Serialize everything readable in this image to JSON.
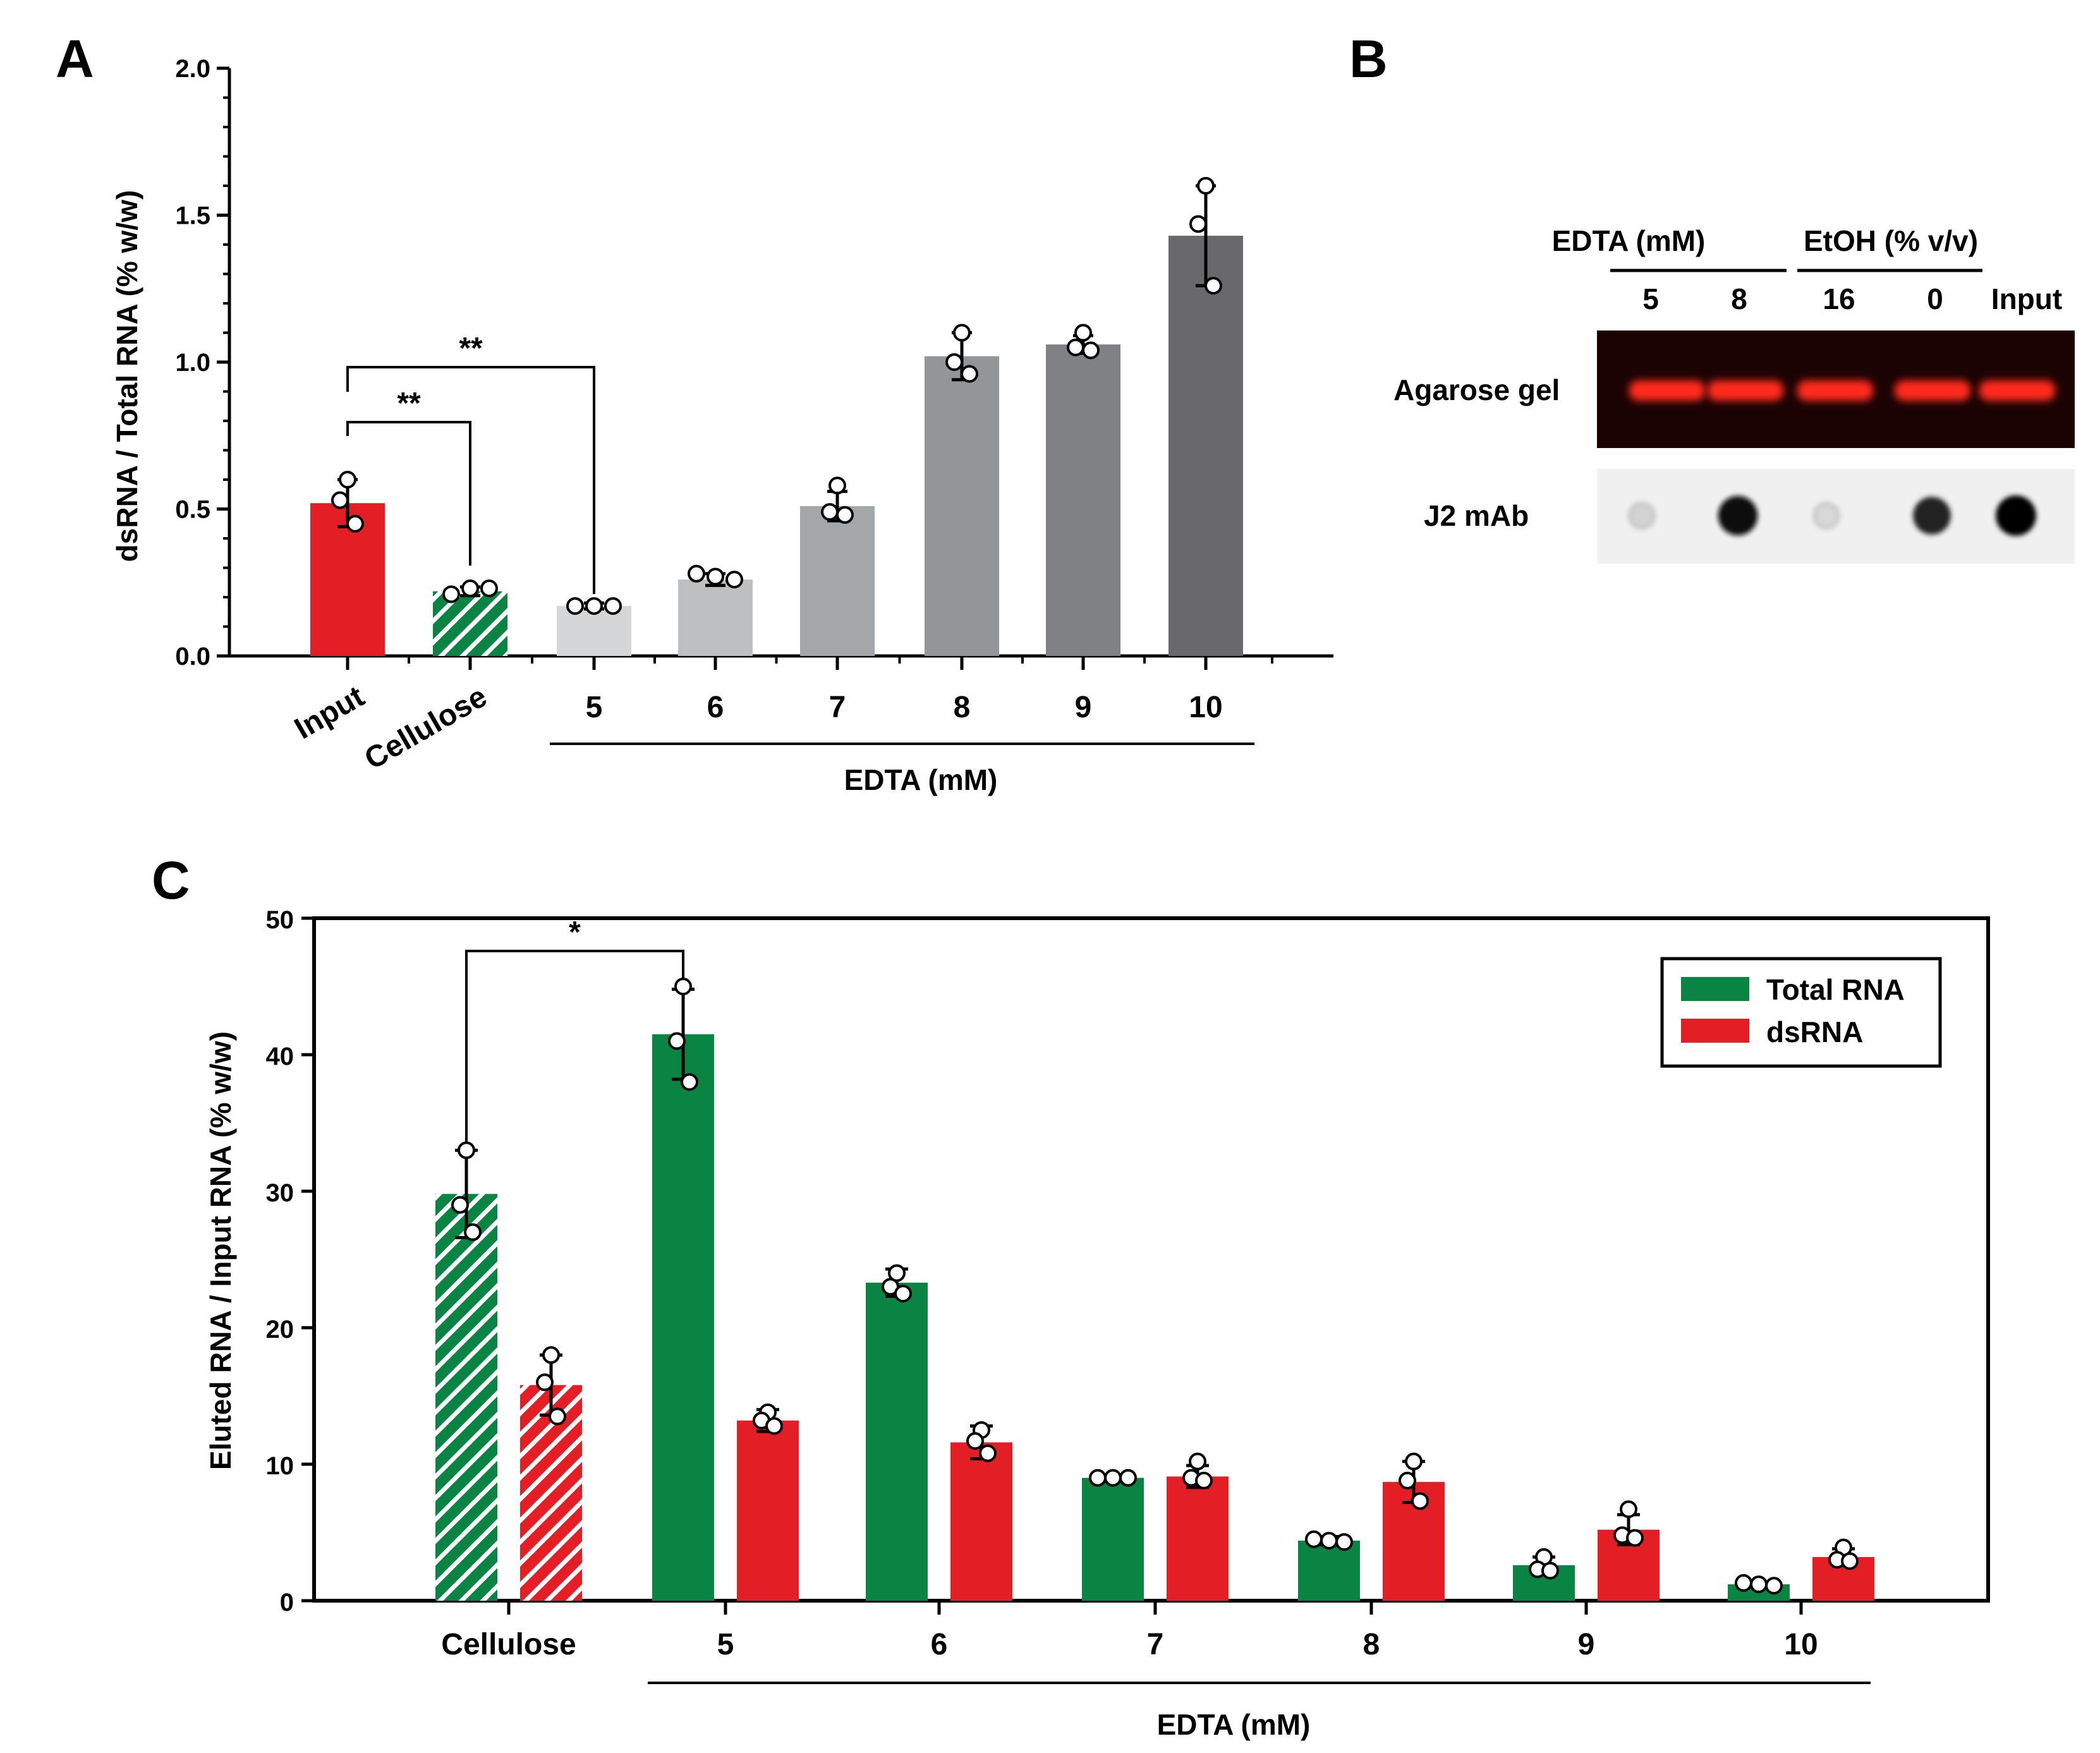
{
  "panels": {
    "a": {
      "label": "A"
    },
    "b": {
      "label": "B",
      "group1": "EDTA (mM)",
      "group2": "EtOH (% v/v)",
      "lanes": [
        "5",
        "8",
        "16",
        "0",
        "Input"
      ],
      "row1": "Agarose gel",
      "row2": "J2 mAb",
      "dot_intensity": [
        0.12,
        0.95,
        0.1,
        0.85,
        1.0
      ]
    },
    "c": {
      "label": "C"
    }
  },
  "colors": {
    "red": "#e31e24",
    "green": "#0a8442",
    "gel_bg": "#1c0303",
    "gel_band": "#ff2a1a"
  },
  "chart_data": [
    {
      "type": "bar",
      "ylabel": "dsRNA / Total RNA (% w/w)",
      "xlabel": "EDTA (mM)",
      "ylim": [
        0,
        2.0
      ],
      "yticks": [
        "0.0",
        "0.5",
        "1.0",
        "1.5",
        "2.0"
      ],
      "categories": [
        "Input",
        "Cellulose",
        "5",
        "6",
        "7",
        "8",
        "9",
        "10"
      ],
      "values": [
        0.52,
        0.22,
        0.17,
        0.26,
        0.51,
        1.02,
        1.06,
        1.43
      ],
      "errors": [
        0.08,
        0.015,
        0.01,
        0.02,
        0.05,
        0.08,
        0.03,
        0.17
      ],
      "points": [
        [
          0.6,
          0.53,
          0.45
        ],
        [
          0.21,
          0.23,
          0.23
        ],
        [
          0.17,
          0.17,
          0.17
        ],
        [
          0.28,
          0.27,
          0.26
        ],
        [
          0.58,
          0.49,
          0.48
        ],
        [
          1.1,
          1.0,
          0.96
        ],
        [
          1.1,
          1.05,
          1.04
        ],
        [
          1.6,
          1.47,
          1.26
        ]
      ],
      "bar_colors": [
        "#e31e24",
        "#0a8442",
        "#d5d6d7",
        "#bdbfc1",
        "#a4a7aa",
        "#939598",
        "#7f8184",
        "#69696c"
      ],
      "bar_hatch": [
        false,
        true,
        false,
        false,
        false,
        false,
        false,
        false
      ],
      "significance": [
        {
          "from": 0,
          "to": 1,
          "level": 1.0,
          "text": "**"
        },
        {
          "from": 0,
          "to": 2,
          "level": 0.98,
          "text": "**"
        }
      ]
    },
    {
      "type": "bar",
      "ylabel": "Eluted RNA / Input RNA (% w/w)",
      "xlabel": "EDTA (mM)",
      "ylim": [
        0,
        50
      ],
      "yticks": [
        "0",
        "10",
        "20",
        "30",
        "40",
        "50"
      ],
      "categories": [
        "Cellulose",
        "5",
        "6",
        "7",
        "8",
        "9",
        "10"
      ],
      "legend_position": "top-right",
      "series": [
        {
          "name": "Total RNA",
          "color": "#0a8442",
          "values": [
            29.8,
            41.5,
            23.3,
            9.0,
            4.4,
            2.6,
            1.2
          ],
          "errors": [
            3.2,
            3.3,
            1.0,
            0.2,
            0.3,
            0.6,
            0.1
          ],
          "points": [
            [
              33,
              29,
              27
            ],
            [
              45,
              41,
              38
            ],
            [
              24,
              23,
              22.5
            ],
            [
              9,
              9,
              9
            ],
            [
              4.5,
              4.4,
              4.3
            ],
            [
              3.2,
              2.3,
              2.2
            ],
            [
              1.3,
              1.2,
              1.1
            ]
          ],
          "hatch": [
            true,
            false,
            false,
            false,
            false,
            false,
            false
          ]
        },
        {
          "name": "dsRNA",
          "color": "#e31e24",
          "values": [
            15.8,
            13.2,
            11.6,
            9.1,
            8.7,
            5.2,
            3.2
          ],
          "errors": [
            2.2,
            0.8,
            1.2,
            0.8,
            1.5,
            1.1,
            0.6
          ],
          "points": [
            [
              18,
              16,
              13.5
            ],
            [
              13.8,
              13.2,
              12.8
            ],
            [
              12.5,
              11.7,
              10.8
            ],
            [
              10.2,
              9,
              8.8
            ],
            [
              10.2,
              8.8,
              7.3
            ],
            [
              6.7,
              4.8,
              4.6
            ],
            [
              3.9,
              3.0,
              2.9
            ]
          ],
          "hatch": [
            true,
            false,
            false,
            false,
            false,
            false,
            false
          ]
        }
      ],
      "significance": [
        {
          "from": 0,
          "to": 1,
          "series": 0,
          "level": 47.6,
          "text": "*"
        }
      ]
    }
  ]
}
